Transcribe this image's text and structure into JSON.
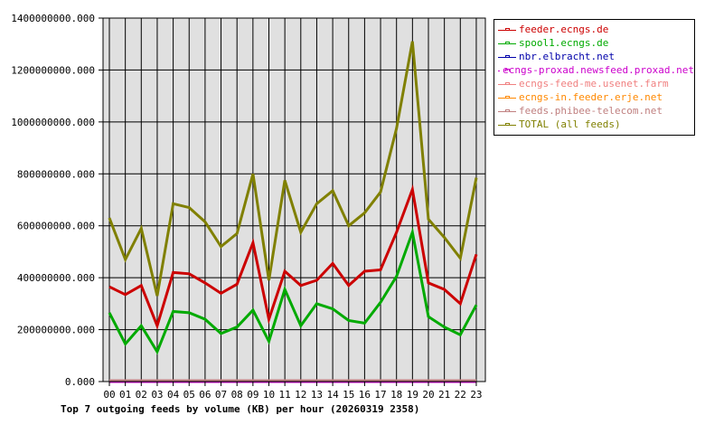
{
  "chart_data": {
    "type": "line",
    "title": "Top 7 outgoing feeds by volume (KB) per hour (20260319 2358)",
    "xlabel": "",
    "ylabel": "",
    "ylim": [
      0,
      1400000000
    ],
    "grid": true,
    "legend_position": "right-top",
    "y_tick_labels": [
      "0.000",
      "200000000.000",
      "400000000.000",
      "600000000.000",
      "800000000.000",
      "1000000000.000",
      "1200000000.000",
      "1400000000.000"
    ],
    "y_ticks": [
      0,
      200000000,
      400000000,
      600000000,
      800000000,
      1000000000,
      1200000000,
      1400000000
    ],
    "categories": [
      "00",
      "01",
      "02",
      "03",
      "04",
      "05",
      "06",
      "07",
      "08",
      "09",
      "10",
      "11",
      "12",
      "13",
      "14",
      "15",
      "16",
      "17",
      "18",
      "19",
      "20",
      "21",
      "22",
      "23"
    ],
    "series": [
      {
        "name": "feeder.ecngs.de",
        "color": "#cc0000",
        "values": [
          365000000,
          335000000,
          370000000,
          215000000,
          420000000,
          415000000,
          380000000,
          340000000,
          375000000,
          535000000,
          240000000,
          425000000,
          370000000,
          390000000,
          455000000,
          370000000,
          425000000,
          430000000,
          575000000,
          740000000,
          380000000,
          355000000,
          300000000,
          490000000
        ]
      },
      {
        "name": "spool1.ecngs.de",
        "color": "#00aa00",
        "values": [
          265000000,
          145000000,
          215000000,
          115000000,
          270000000,
          265000000,
          240000000,
          185000000,
          210000000,
          275000000,
          155000000,
          355000000,
          215000000,
          300000000,
          280000000,
          235000000,
          225000000,
          305000000,
          405000000,
          575000000,
          250000000,
          210000000,
          180000000,
          295000000
        ]
      },
      {
        "name": "nbr.elbracht.net",
        "color": "#0000aa",
        "values": [
          0,
          0,
          0,
          0,
          0,
          0,
          0,
          0,
          0,
          0,
          0,
          0,
          0,
          0,
          0,
          0,
          0,
          0,
          0,
          0,
          0,
          0,
          0,
          0
        ]
      },
      {
        "name": "ecngs-proxad.newsfeed.proxad.net",
        "color": "#cc00cc",
        "values": [
          0,
          0,
          0,
          0,
          0,
          0,
          0,
          0,
          0,
          0,
          0,
          0,
          0,
          0,
          0,
          0,
          0,
          0,
          0,
          0,
          0,
          0,
          0,
          0
        ]
      },
      {
        "name": "ecngs-feed-me.usenet.farm",
        "color": "#f08080",
        "values": [
          0,
          0,
          0,
          0,
          0,
          0,
          0,
          0,
          0,
          0,
          0,
          0,
          0,
          0,
          0,
          0,
          0,
          0,
          0,
          0,
          0,
          0,
          0,
          0
        ]
      },
      {
        "name": "ecngs-in.feeder.erje.net",
        "color": "#ff8800",
        "values": [
          0,
          0,
          0,
          0,
          0,
          0,
          0,
          0,
          0,
          0,
          0,
          0,
          0,
          0,
          0,
          0,
          0,
          0,
          0,
          0,
          0,
          0,
          0,
          0
        ]
      },
      {
        "name": "feeds.phibee-telecom.net",
        "color": "#c08080",
        "values": [
          0,
          0,
          0,
          0,
          0,
          0,
          0,
          0,
          0,
          0,
          0,
          0,
          0,
          0,
          0,
          0,
          0,
          0,
          0,
          0,
          0,
          0,
          0,
          0
        ]
      },
      {
        "name": "TOTAL (all feeds)",
        "color": "#808000",
        "values": [
          630000000,
          470000000,
          590000000,
          330000000,
          685000000,
          670000000,
          615000000,
          520000000,
          570000000,
          800000000,
          390000000,
          775000000,
          575000000,
          685000000,
          735000000,
          600000000,
          650000000,
          730000000,
          975000000,
          1310000000,
          625000000,
          555000000,
          475000000,
          785000000
        ]
      }
    ]
  },
  "legend": {
    "items": [
      {
        "label": "feeder.ecngs.de",
        "color": "#cc0000"
      },
      {
        "label": "spool1.ecngs.de",
        "color": "#00aa00"
      },
      {
        "label": "nbr.elbracht.net",
        "color": "#0000aa"
      },
      {
        "label": "ecngs-proxad.newsfeed.proxad.net",
        "color": "#cc00cc"
      },
      {
        "label": "ecngs-feed-me.usenet.farm",
        "color": "#f08080"
      },
      {
        "label": "ecngs-in.feeder.erje.net",
        "color": "#ff8800"
      },
      {
        "label": "feeds.phibee-telecom.net",
        "color": "#c08080"
      },
      {
        "label": "TOTAL (all feeds)",
        "color": "#808000"
      }
    ]
  },
  "colors": {
    "plot_background": "#e0e0e0",
    "grid": "#000000",
    "axis": "#000000"
  }
}
